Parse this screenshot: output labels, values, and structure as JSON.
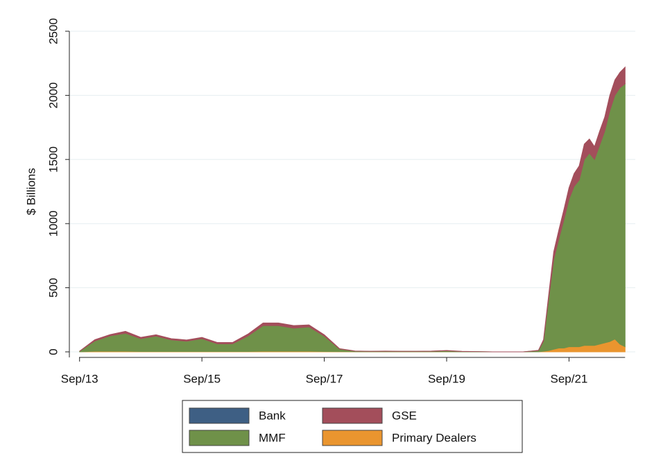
{
  "chart_data": {
    "type": "stacked-area",
    "y_label": "$ Billions",
    "x": [
      "2013-09",
      "2013-12",
      "2014-03",
      "2014-06",
      "2014-09",
      "2014-12",
      "2015-03",
      "2015-06",
      "2015-09",
      "2015-12",
      "2016-03",
      "2016-06",
      "2016-09",
      "2016-12",
      "2017-03",
      "2017-06",
      "2017-09",
      "2017-12",
      "2018-03",
      "2018-06",
      "2018-09",
      "2018-12",
      "2019-03",
      "2019-06",
      "2019-09",
      "2019-12",
      "2020-03",
      "2020-06",
      "2020-09",
      "2020-12",
      "2021-03",
      "2021-04",
      "2021-05",
      "2021-06",
      "2021-07",
      "2021-08",
      "2021-09",
      "2021-10",
      "2021-11",
      "2021-12",
      "2022-01",
      "2022-02",
      "2022-03",
      "2022-04",
      "2022-05",
      "2022-06",
      "2022-07",
      "2022-08"
    ],
    "series": [
      {
        "name": "Bank",
        "color": "#3e5f84",
        "values": [
          0,
          0,
          0,
          0,
          0,
          0,
          0,
          0,
          0,
          0,
          0,
          0,
          0,
          0,
          0,
          0,
          0,
          0,
          0,
          0,
          0,
          0,
          0,
          0,
          0,
          0,
          0,
          0,
          0,
          0,
          0,
          0,
          0,
          0,
          0,
          0,
          0,
          0,
          0,
          0,
          0,
          0,
          0,
          0,
          0,
          0,
          0,
          0
        ]
      },
      {
        "name": "Primary Dealers",
        "color": "#ea952f",
        "values": [
          0,
          5,
          5,
          5,
          3,
          3,
          3,
          3,
          3,
          3,
          3,
          3,
          5,
          5,
          5,
          5,
          3,
          2,
          1,
          1,
          1,
          1,
          1,
          1,
          1,
          0,
          0,
          0,
          0,
          0,
          0,
          5,
          10,
          20,
          30,
          30,
          40,
          40,
          40,
          50,
          50,
          50,
          60,
          70,
          80,
          100,
          60,
          40
        ]
      },
      {
        "name": "MMF",
        "color": "#6f9149",
        "values": [
          5,
          80,
          120,
          140,
          100,
          120,
          90,
          80,
          100,
          60,
          60,
          120,
          200,
          200,
          180,
          190,
          120,
          20,
          5,
          3,
          4,
          3,
          3,
          4,
          8,
          3,
          2,
          0,
          0,
          0,
          10,
          80,
          400,
          700,
          850,
          1000,
          1150,
          1250,
          1300,
          1450,
          1500,
          1450,
          1550,
          1650,
          1800,
          1900,
          2000,
          2050
        ]
      },
      {
        "name": "GSE",
        "color": "#a34e5b",
        "values": [
          0,
          10,
          10,
          15,
          10,
          10,
          10,
          10,
          10,
          10,
          10,
          15,
          20,
          20,
          20,
          15,
          10,
          3,
          1,
          1,
          1,
          1,
          1,
          1,
          2,
          1,
          0,
          0,
          0,
          0,
          2,
          10,
          30,
          60,
          70,
          80,
          90,
          100,
          110,
          120,
          110,
          100,
          110,
          110,
          120,
          120,
          120,
          130
        ]
      }
    ],
    "legend_order": [
      0,
      3,
      2,
      1
    ],
    "xlim": [
      "2013-07",
      "2022-10"
    ],
    "xticks": [
      {
        "value": "2013-09",
        "label": "Sep/13"
      },
      {
        "value": "2015-09",
        "label": "Sep/15"
      },
      {
        "value": "2017-09",
        "label": "Sep/17"
      },
      {
        "value": "2019-09",
        "label": "Sep/19"
      },
      {
        "value": "2021-09",
        "label": "Sep/21"
      }
    ],
    "ylim": [
      0,
      2500
    ],
    "yticks": [
      0,
      500,
      1000,
      1500,
      2000,
      2500
    ],
    "grid": true
  }
}
